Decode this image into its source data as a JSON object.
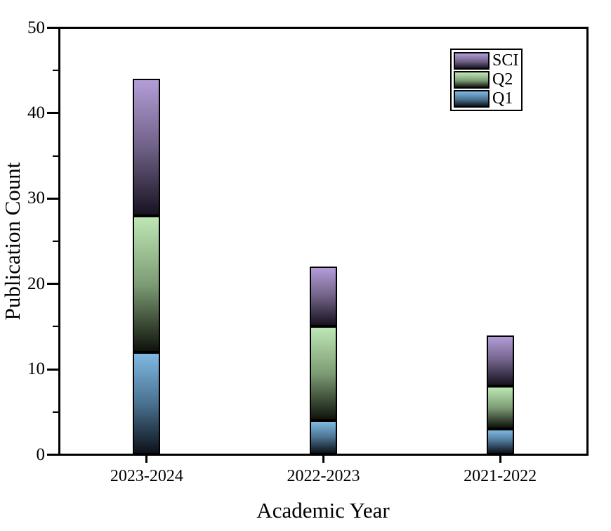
{
  "chart_data": {
    "type": "bar",
    "stacked": true,
    "title": "",
    "xlabel": "Academic Year",
    "ylabel": "Publication Count",
    "categories": [
      "2023-2024",
      "2022-2023",
      "2021-2022"
    ],
    "series": [
      {
        "name": "Q1",
        "values": [
          12,
          4,
          3
        ],
        "color_top": "#7fb9e2",
        "color_mid": "#4a7190",
        "color_bottom": "#0d1219"
      },
      {
        "name": "Q2",
        "values": [
          16,
          11,
          5
        ],
        "color_top": "#bde7b4",
        "color_mid": "#7d9c75",
        "color_bottom": "#0f130b"
      },
      {
        "name": "SCI",
        "values": [
          16,
          7,
          6
        ],
        "color_top": "#b39dd8",
        "color_mid": "#6f6186",
        "color_bottom": "#181221"
      }
    ],
    "stack_totals": [
      44,
      22,
      14
    ],
    "ylim": [
      0,
      50
    ],
    "y_major_ticks": [
      0,
      10,
      20,
      30,
      40,
      50
    ],
    "y_minor_ticks": [
      5,
      15,
      25,
      35,
      45
    ],
    "grid": false,
    "legend_position": "top-right",
    "legend_order": [
      "SCI",
      "Q2",
      "Q1"
    ],
    "frame_color": "#000000",
    "background_color": "#ffffff"
  }
}
